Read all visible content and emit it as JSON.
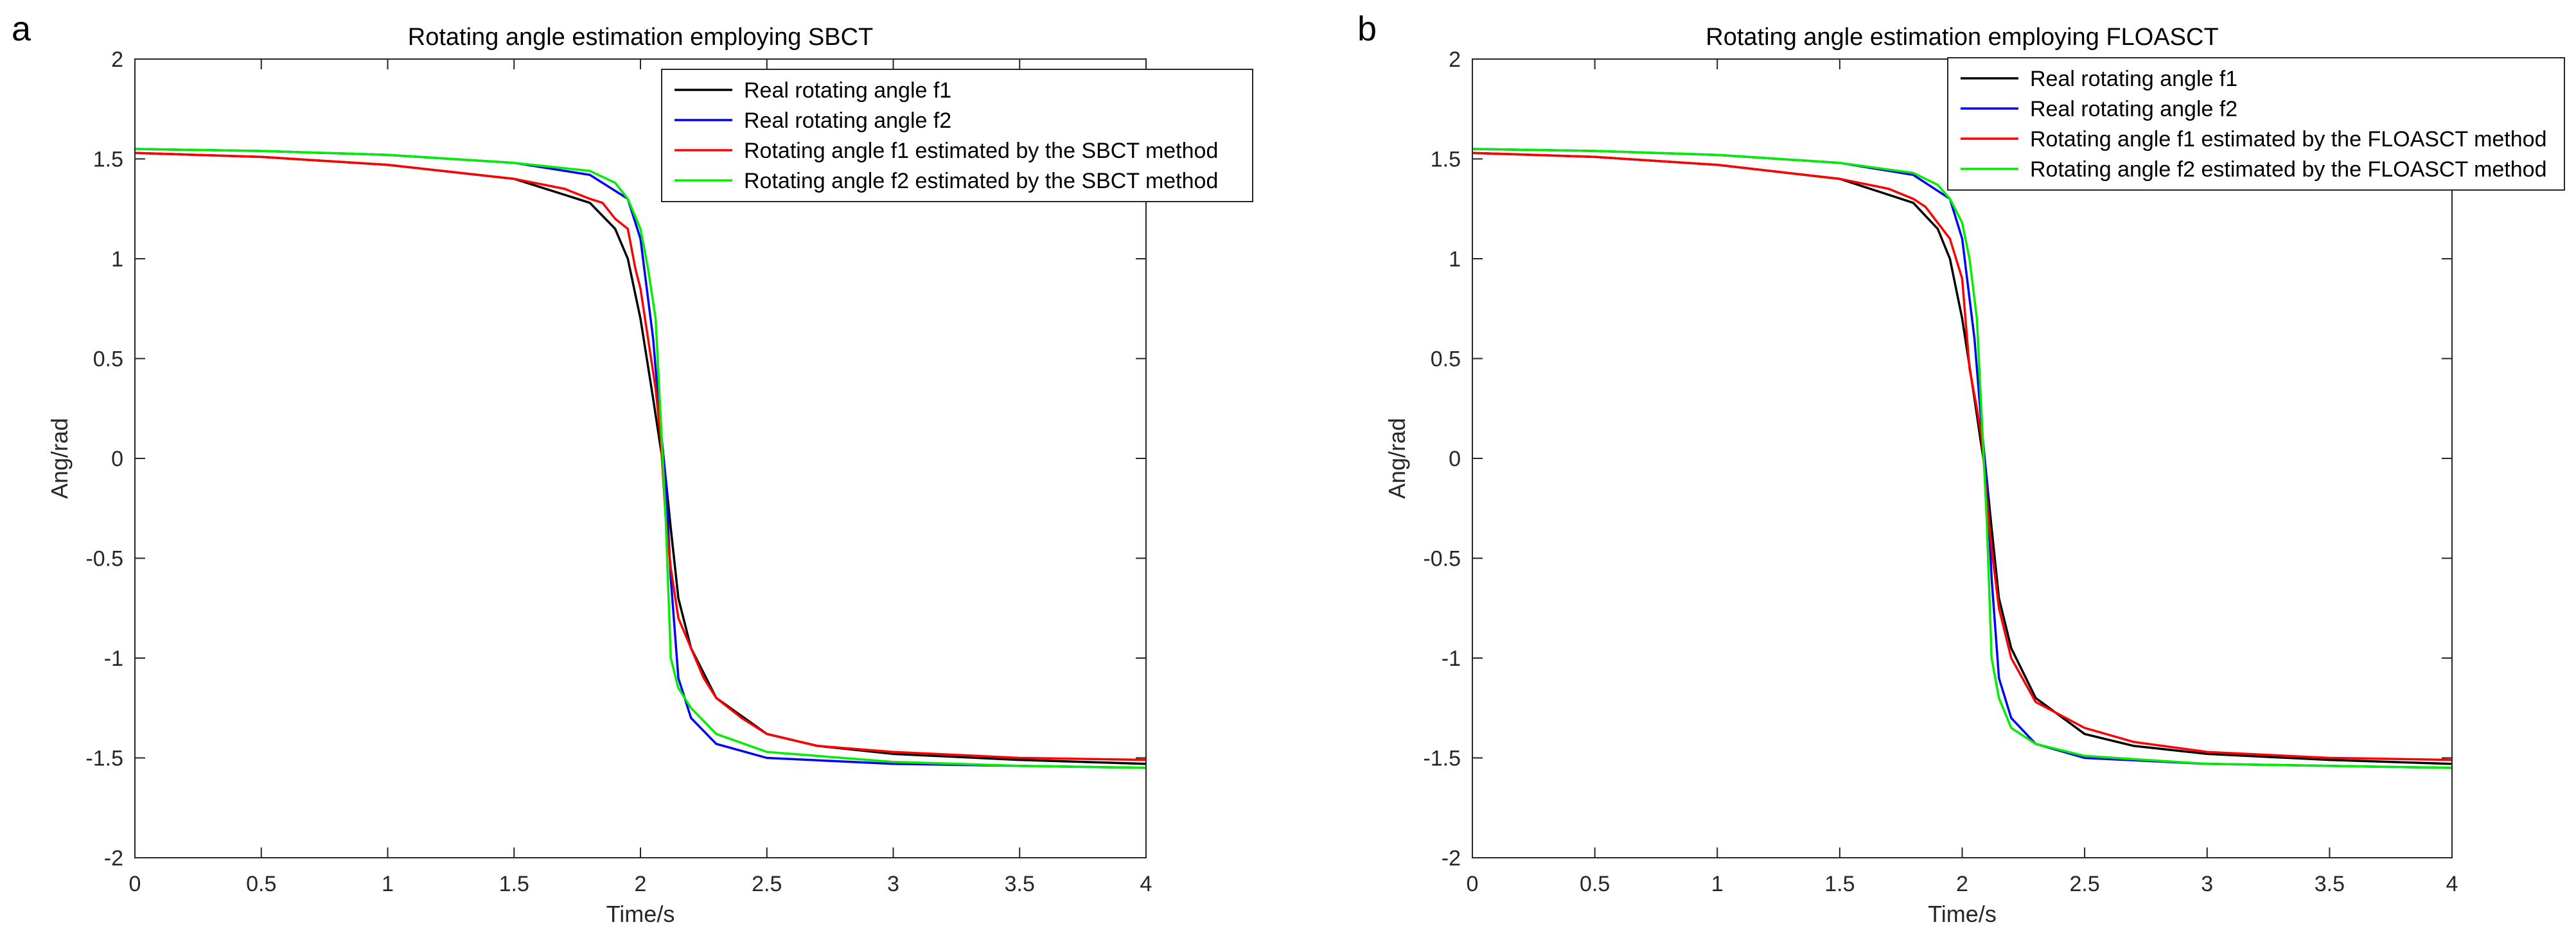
{
  "chart_data": [
    {
      "panel_label": "a",
      "type": "line",
      "title": "Rotating angle estimation employing SBCT",
      "xlabel": "Time/s",
      "ylabel": "Ang/rad",
      "xlim": [
        0,
        4
      ],
      "ylim": [
        -2,
        2
      ],
      "xticks": [
        0,
        0.5,
        1,
        1.5,
        2,
        2.5,
        3,
        3.5,
        4
      ],
      "yticks": [
        -2,
        -1.5,
        -1,
        -0.5,
        0,
        0.5,
        1,
        1.5,
        2
      ],
      "xtick_labels": [
        "0",
        "0.5",
        "1",
        "1.5",
        "2",
        "2.5",
        "3",
        "3.5",
        "4"
      ],
      "ytick_labels": [
        "-2",
        "-1.5",
        "-1",
        "-0.5",
        "0",
        "0.5",
        "1",
        "1.5",
        "2"
      ],
      "grid": false,
      "legend_position": "top-right",
      "series": [
        {
          "name": "Real rotating angle f1",
          "color": "#000000",
          "x": [
            0,
            0.5,
            1,
            1.5,
            1.8,
            1.9,
            1.95,
            2.0,
            2.05,
            2.08,
            2.1,
            2.12,
            2.15,
            2.2,
            2.3,
            2.5,
            2.7,
            3,
            3.5,
            4
          ],
          "y": [
            1.53,
            1.51,
            1.47,
            1.4,
            1.28,
            1.15,
            1.0,
            0.7,
            0.3,
            0.05,
            -0.1,
            -0.35,
            -0.7,
            -0.95,
            -1.2,
            -1.38,
            -1.44,
            -1.48,
            -1.51,
            -1.53
          ]
        },
        {
          "name": "Real rotating angle f2",
          "color": "#0000ff",
          "x": [
            0,
            0.5,
            1,
            1.5,
            1.8,
            1.95,
            2.0,
            2.05,
            2.08,
            2.1,
            2.12,
            2.15,
            2.2,
            2.3,
            2.5,
            3,
            3.5,
            4
          ],
          "y": [
            1.55,
            1.54,
            1.52,
            1.48,
            1.42,
            1.3,
            1.1,
            0.6,
            0.15,
            -0.1,
            -0.6,
            -1.1,
            -1.3,
            -1.43,
            -1.5,
            -1.53,
            -1.54,
            -1.55
          ]
        },
        {
          "name": "Rotating angle f1 estimated by the SBCT method",
          "color": "#ff0000",
          "x": [
            0,
            0.5,
            1,
            1.5,
            1.7,
            1.8,
            1.85,
            1.9,
            1.95,
            1.98,
            2.0,
            2.03,
            2.06,
            2.08,
            2.1,
            2.12,
            2.15,
            2.2,
            2.25,
            2.3,
            2.4,
            2.5,
            2.7,
            3,
            3.5,
            4
          ],
          "y": [
            1.53,
            1.51,
            1.47,
            1.4,
            1.35,
            1.3,
            1.28,
            1.2,
            1.15,
            0.95,
            0.85,
            0.6,
            0.35,
            0.1,
            -0.3,
            -0.55,
            -0.8,
            -0.95,
            -1.1,
            -1.2,
            -1.3,
            -1.38,
            -1.44,
            -1.47,
            -1.5,
            -1.51
          ]
        },
        {
          "name": "Rotating angle f2 estimated by the SBCT method",
          "color": "#00ee00",
          "x": [
            0,
            0.5,
            1,
            1.5,
            1.8,
            1.9,
            1.95,
            2.0,
            2.03,
            2.06,
            2.08,
            2.1,
            2.12,
            2.15,
            2.2,
            2.3,
            2.5,
            3,
            3.5,
            4
          ],
          "y": [
            1.55,
            1.54,
            1.52,
            1.48,
            1.44,
            1.38,
            1.3,
            1.15,
            0.95,
            0.7,
            0.2,
            -0.3,
            -1.0,
            -1.15,
            -1.25,
            -1.38,
            -1.47,
            -1.52,
            -1.54,
            -1.55
          ]
        }
      ]
    },
    {
      "panel_label": "b",
      "type": "line",
      "title": "Rotating angle estimation employing FLOASCT",
      "xlabel": "Time/s",
      "ylabel": "Ang/rad",
      "xlim": [
        0,
        4
      ],
      "ylim": [
        -2,
        2
      ],
      "xticks": [
        0,
        0.5,
        1,
        1.5,
        2,
        2.5,
        3,
        3.5,
        4
      ],
      "yticks": [
        -2,
        -1.5,
        -1,
        -0.5,
        0,
        0.5,
        1,
        1.5,
        2
      ],
      "xtick_labels": [
        "0",
        "0.5",
        "1",
        "1.5",
        "2",
        "2.5",
        "3",
        "3.5",
        "4"
      ],
      "ytick_labels": [
        "-2",
        "-1.5",
        "-1",
        "-0.5",
        "0",
        "0.5",
        "1",
        "1.5",
        "2"
      ],
      "grid": false,
      "legend_position": "top-right",
      "series": [
        {
          "name": "Real rotating angle f1",
          "color": "#000000",
          "x": [
            0,
            0.5,
            1,
            1.5,
            1.8,
            1.9,
            1.95,
            2.0,
            2.05,
            2.08,
            2.1,
            2.12,
            2.15,
            2.2,
            2.3,
            2.5,
            2.7,
            3,
            3.5,
            4
          ],
          "y": [
            1.53,
            1.51,
            1.47,
            1.4,
            1.28,
            1.15,
            1.0,
            0.7,
            0.3,
            0.05,
            -0.1,
            -0.35,
            -0.7,
            -0.95,
            -1.2,
            -1.38,
            -1.44,
            -1.48,
            -1.51,
            -1.53
          ]
        },
        {
          "name": "Real rotating angle f2",
          "color": "#0000ff",
          "x": [
            0,
            0.5,
            1,
            1.5,
            1.8,
            1.95,
            2.0,
            2.05,
            2.08,
            2.1,
            2.12,
            2.15,
            2.2,
            2.3,
            2.5,
            3,
            3.5,
            4
          ],
          "y": [
            1.55,
            1.54,
            1.52,
            1.48,
            1.42,
            1.3,
            1.1,
            0.6,
            0.15,
            -0.1,
            -0.6,
            -1.1,
            -1.3,
            -1.43,
            -1.5,
            -1.53,
            -1.54,
            -1.55
          ]
        },
        {
          "name": "Rotating angle f1 estimated by the FLOASCT method",
          "color": "#ff0000",
          "x": [
            0,
            0.5,
            1,
            1.5,
            1.7,
            1.8,
            1.85,
            1.9,
            1.95,
            2.0,
            2.03,
            2.06,
            2.08,
            2.1,
            2.12,
            2.15,
            2.2,
            2.3,
            2.5,
            2.7,
            3,
            3.5,
            4
          ],
          "y": [
            1.53,
            1.51,
            1.47,
            1.4,
            1.35,
            1.3,
            1.26,
            1.18,
            1.1,
            0.9,
            0.45,
            0.25,
            0.1,
            -0.2,
            -0.45,
            -0.75,
            -1.0,
            -1.22,
            -1.35,
            -1.42,
            -1.47,
            -1.5,
            -1.51
          ]
        },
        {
          "name": "Rotating angle f2 estimated by the FLOASCT method",
          "color": "#00ee00",
          "x": [
            0,
            0.5,
            1,
            1.5,
            1.8,
            1.9,
            1.95,
            2.0,
            2.03,
            2.06,
            2.08,
            2.1,
            2.12,
            2.15,
            2.2,
            2.3,
            2.5,
            3,
            3.5,
            4
          ],
          "y": [
            1.55,
            1.54,
            1.52,
            1.48,
            1.43,
            1.37,
            1.3,
            1.18,
            1.0,
            0.7,
            0.2,
            -0.3,
            -1.0,
            -1.2,
            -1.35,
            -1.43,
            -1.49,
            -1.53,
            -1.54,
            -1.55
          ]
        }
      ]
    }
  ]
}
